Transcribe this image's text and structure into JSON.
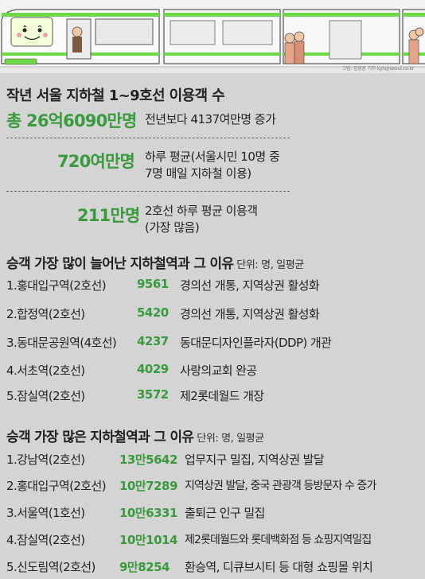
{
  "illustration": {
    "credit": "그림: 김영훈 기자 kyh@seoul.co.kr"
  },
  "title": "작년 서울 지하철 1~9호선 이용객 수",
  "stats": [
    {
      "value": "총 26억6090만명",
      "desc_lines": [
        "전년보다 4137여만명 증가"
      ]
    },
    {
      "value": "720여만명",
      "desc_lines": [
        "하루 평균(서울시민 10명 중",
        "7명 매일 지하철 이용)"
      ]
    },
    {
      "value": "211만명",
      "desc_lines": [
        "2호선 하루 평균 이용객",
        "(가장 많음)"
      ]
    }
  ],
  "section_growth": {
    "heading": "승객 가장 많이 늘어난 지하철역과 그 이유",
    "unit": "단위: 명, 일평균",
    "rows": [
      {
        "name": "1.홍대입구역(2호선)",
        "value": "9561",
        "reason": "경의선 개통, 지역상권 활성화"
      },
      {
        "name": "2.합정역(2호선)",
        "value": "5420",
        "reason": "경의선 개통, 지역상권 활성화"
      },
      {
        "name": "3.동대문공원역(4호선)",
        "value": "4237",
        "reason": "동대문디자인플라자(DDP) 개관"
      },
      {
        "name": "4.서초역(2호선)",
        "value": "4029",
        "reason": "사랑의교회 완공"
      },
      {
        "name": "5.잠실역(2호선)",
        "value": "3572",
        "reason": "제2롯데월드 개장"
      }
    ]
  },
  "section_busiest": {
    "heading": "승객 가장 많은 지하철역과 그 이유",
    "unit": "단위: 명, 일평균",
    "rows": [
      {
        "name": "1.강남역(2호선)",
        "value": "13만5642",
        "reason": "업무지구 밀집, 지역상권 발달"
      },
      {
        "name": "2.홍대입구역(2호선)",
        "value": "10만7289",
        "reason": "지역상권 발달, 중국 관광객 등방문자 수 증가"
      },
      {
        "name": "3.서울역(1호선)",
        "value": "10만6331",
        "reason": "출퇴근 인구 밀집"
      },
      {
        "name": "4.잠실역(2호선)",
        "value": "10만1014",
        "reason": "제2롯데월드와 롯데백화점 등 쇼핑지역밀집"
      },
      {
        "name": "5.신도림역(2호선)",
        "value": "9만8254",
        "reason": "환승역, 디큐브시티 등 대형 쇼핑몰 위치"
      }
    ]
  },
  "colors": {
    "accent_green": "#3a9a3e",
    "background": "#d4d4d4"
  },
  "icons": [
    "subway-train-illustration",
    "passenger-figures"
  ]
}
